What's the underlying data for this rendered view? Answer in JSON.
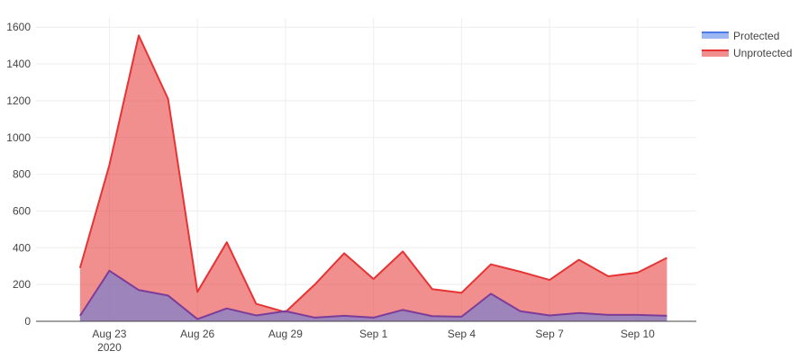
{
  "chart_data": {
    "type": "area",
    "x": [
      "2020-08-22",
      "2020-08-23",
      "2020-08-24",
      "2020-08-25",
      "2020-08-26",
      "2020-08-27",
      "2020-08-28",
      "2020-08-29",
      "2020-08-30",
      "2020-08-31",
      "2020-09-01",
      "2020-09-02",
      "2020-09-03",
      "2020-09-04",
      "2020-09-05",
      "2020-09-06",
      "2020-09-07",
      "2020-09-08",
      "2020-09-09",
      "2020-09-10",
      "2020-09-11"
    ],
    "series": [
      {
        "name": "Protected",
        "color": "#4a7be8",
        "values": [
          30,
          275,
          170,
          140,
          12,
          70,
          32,
          55,
          20,
          30,
          20,
          62,
          28,
          25,
          150,
          55,
          32,
          45,
          35,
          35,
          30
        ]
      },
      {
        "name": "Unprotected",
        "color": "#e63333",
        "values": [
          290,
          850,
          1555,
          1210,
          160,
          430,
          95,
          50,
          200,
          370,
          230,
          380,
          175,
          155,
          310,
          270,
          225,
          335,
          245,
          265,
          345
        ]
      }
    ],
    "ylim": [
      0,
      1650
    ],
    "y_ticks": [
      "0",
      "200",
      "400",
      "600",
      "800",
      "1000",
      "1200",
      "1400",
      "1600"
    ],
    "x_ticks": [
      {
        "date": "2020-08-23",
        "label": "Aug 23",
        "sublabel": "2020"
      },
      {
        "date": "2020-08-26",
        "label": "Aug 26",
        "sublabel": ""
      },
      {
        "date": "2020-08-29",
        "label": "Aug 29",
        "sublabel": ""
      },
      {
        "date": "2020-09-01",
        "label": "Sep 1",
        "sublabel": ""
      },
      {
        "date": "2020-09-04",
        "label": "Sep 4",
        "sublabel": ""
      },
      {
        "date": "2020-09-07",
        "label": "Sep 7",
        "sublabel": ""
      },
      {
        "date": "2020-09-10",
        "label": "Sep 10",
        "sublabel": ""
      }
    ],
    "grid": true,
    "legend_position": "top-right"
  }
}
